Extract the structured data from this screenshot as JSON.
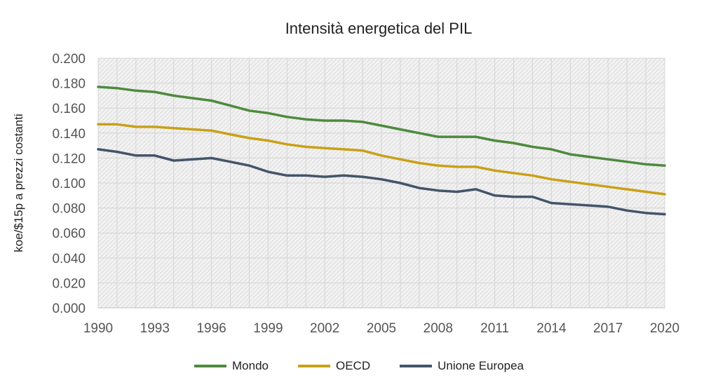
{
  "chart_data": {
    "type": "line",
    "title": "Intensità energetica del PIL",
    "xlabel": "",
    "ylabel": "koe/$15p a prezzi costanti",
    "x": [
      1990,
      1991,
      1992,
      1993,
      1994,
      1995,
      1996,
      1997,
      1998,
      1999,
      2000,
      2001,
      2002,
      2003,
      2004,
      2005,
      2006,
      2007,
      2008,
      2009,
      2010,
      2011,
      2012,
      2013,
      2014,
      2015,
      2016,
      2017,
      2018,
      2019,
      2020
    ],
    "xticks": [
      "1990",
      "1993",
      "1996",
      "1999",
      "2002",
      "2005",
      "2008",
      "2011",
      "2014",
      "2017",
      "2020"
    ],
    "yticks": [
      "0.000",
      "0.020",
      "0.040",
      "0.060",
      "0.080",
      "0.100",
      "0.120",
      "0.140",
      "0.160",
      "0.180",
      "0.200"
    ],
    "ylim": [
      0,
      0.2
    ],
    "grid": true,
    "legend_position": "bottom",
    "series": [
      {
        "name": "Mondo",
        "color": "#4e8a3e",
        "values": [
          0.177,
          0.176,
          0.174,
          0.173,
          0.17,
          0.168,
          0.166,
          0.162,
          0.158,
          0.156,
          0.153,
          0.151,
          0.15,
          0.15,
          0.149,
          0.146,
          0.143,
          0.14,
          0.137,
          0.137,
          0.137,
          0.134,
          0.132,
          0.129,
          0.127,
          0.123,
          0.121,
          0.119,
          0.117,
          0.115,
          0.114
        ]
      },
      {
        "name": "OECD",
        "color": "#c9a116",
        "values": [
          0.147,
          0.147,
          0.145,
          0.145,
          0.144,
          0.143,
          0.142,
          0.139,
          0.136,
          0.134,
          0.131,
          0.129,
          0.128,
          0.127,
          0.126,
          0.122,
          0.119,
          0.116,
          0.114,
          0.113,
          0.113,
          0.11,
          0.108,
          0.106,
          0.103,
          0.101,
          0.099,
          0.097,
          0.095,
          0.093,
          0.091
        ]
      },
      {
        "name": "Unione Europea",
        "color": "#44546a",
        "values": [
          0.127,
          0.125,
          0.122,
          0.122,
          0.118,
          0.119,
          0.12,
          0.117,
          0.114,
          0.109,
          0.106,
          0.106,
          0.105,
          0.106,
          0.105,
          0.103,
          0.1,
          0.096,
          0.094,
          0.093,
          0.095,
          0.09,
          0.089,
          0.089,
          0.084,
          0.083,
          0.082,
          0.081,
          0.078,
          0.076,
          0.075
        ]
      }
    ]
  }
}
